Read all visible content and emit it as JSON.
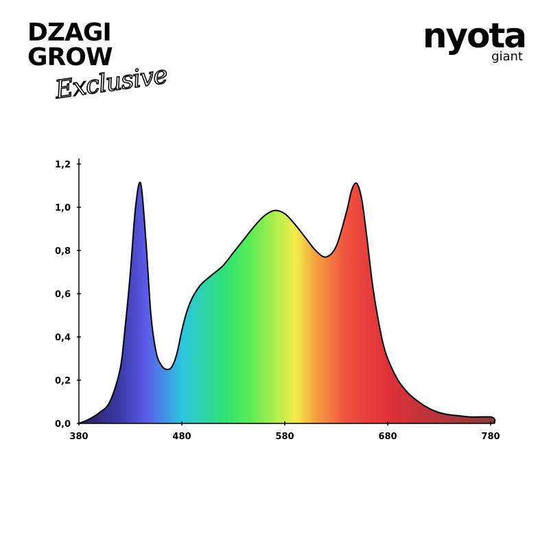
{
  "branding": {
    "left_line1": "DZAGI",
    "left_line2": "GROW",
    "left_script": "Exclusive",
    "right_logo": "nyota",
    "right_sub": "giant"
  },
  "chart_data": {
    "type": "area",
    "title": "",
    "xlabel": "",
    "ylabel": "",
    "xlim": [
      380,
      780
    ],
    "ylim": [
      0,
      1.2
    ],
    "x_ticks": [
      "380",
      "480",
      "580",
      "680",
      "780"
    ],
    "y_ticks": [
      "0,0",
      "0,2",
      "0,4",
      "0,6",
      "0,8",
      "1,0",
      "1,2"
    ],
    "grid": false,
    "legend": "none",
    "fill": "visible-spectrum gradient",
    "series": [
      {
        "x": [
          380,
          390,
          400,
          410,
          420,
          425,
          430,
          435,
          440,
          445,
          450,
          455,
          460,
          465,
          470,
          475,
          480,
          485,
          490,
          495,
          500,
          510,
          520,
          530,
          540,
          550,
          560,
          570,
          580,
          590,
          600,
          610,
          620,
          630,
          640,
          645,
          650,
          655,
          660,
          665,
          670,
          675,
          680,
          690,
          700,
          710,
          720,
          730,
          740,
          750,
          760,
          770,
          780
        ],
        "y": [
          0.0,
          0.02,
          0.05,
          0.1,
          0.25,
          0.45,
          0.7,
          1.0,
          1.11,
          0.85,
          0.5,
          0.33,
          0.27,
          0.25,
          0.26,
          0.32,
          0.43,
          0.52,
          0.58,
          0.62,
          0.65,
          0.69,
          0.73,
          0.79,
          0.85,
          0.91,
          0.96,
          0.985,
          0.97,
          0.92,
          0.86,
          0.8,
          0.77,
          0.82,
          0.98,
          1.08,
          1.11,
          1.03,
          0.85,
          0.65,
          0.5,
          0.38,
          0.3,
          0.2,
          0.14,
          0.1,
          0.07,
          0.05,
          0.04,
          0.035,
          0.03,
          0.03,
          0.03
        ]
      }
    ],
    "spectrum_colors": [
      {
        "wavelength": 380,
        "color": "#2a1f5a"
      },
      {
        "wavelength": 420,
        "color": "#3a3aa8"
      },
      {
        "wavelength": 445,
        "color": "#5a5ae8"
      },
      {
        "wavelength": 480,
        "color": "#2ec4e0"
      },
      {
        "wavelength": 520,
        "color": "#2fe07a"
      },
      {
        "wavelength": 545,
        "color": "#55ec55"
      },
      {
        "wavelength": 590,
        "color": "#f2ee4a"
      },
      {
        "wavelength": 610,
        "color": "#f5a040"
      },
      {
        "wavelength": 640,
        "color": "#f05040"
      },
      {
        "wavelength": 680,
        "color": "#e0303a"
      },
      {
        "wavelength": 780,
        "color": "#8a3a3a"
      }
    ]
  }
}
